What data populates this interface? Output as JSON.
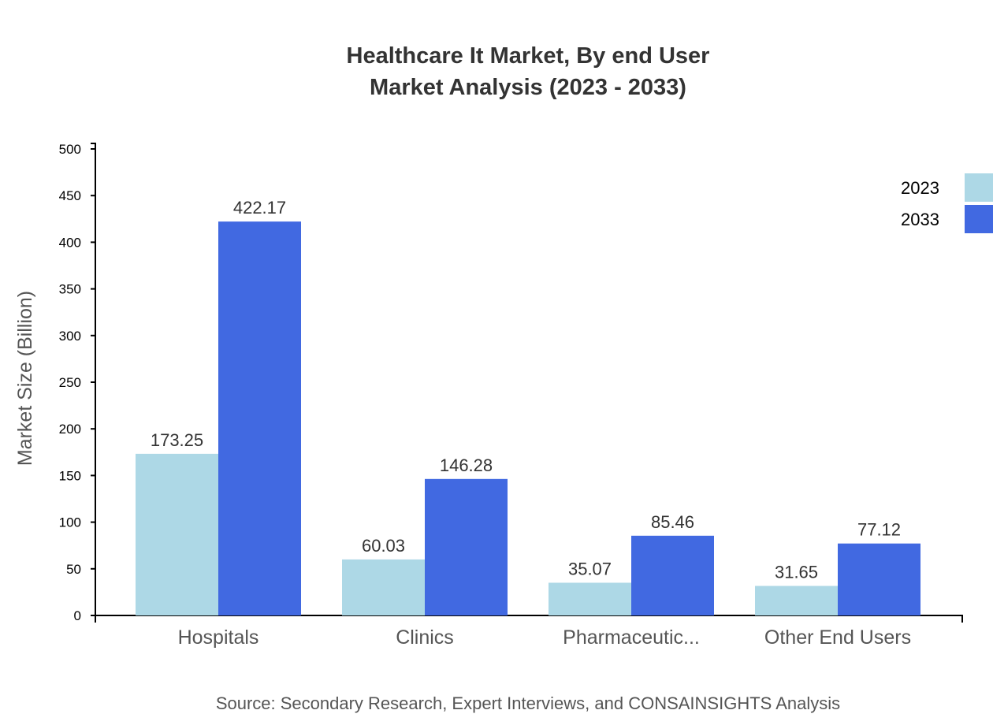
{
  "chart_data": {
    "type": "bar",
    "title": "Healthcare It Market, By end User",
    "subtitle": "Market Analysis (2023 - 2033)",
    "ylabel": "Market Size (Billion)",
    "xlabel": "",
    "ylim": [
      0,
      500
    ],
    "yticks": [
      0,
      50,
      100,
      150,
      200,
      250,
      300,
      350,
      400,
      450,
      500
    ],
    "categories": [
      "Hospitals",
      "Clinics",
      "Pharmaceutic...",
      "Other End Users"
    ],
    "series": [
      {
        "name": "2023",
        "color": "#add8e6",
        "values": [
          173.25,
          60.03,
          35.07,
          31.65
        ]
      },
      {
        "name": "2033",
        "color": "#4169e1",
        "values": [
          422.17,
          146.28,
          85.46,
          77.12
        ]
      }
    ],
    "grid": false,
    "legend_position": "top-right",
    "source": "Source: Secondary Research, Expert Interviews, and CONSAINSIGHTS Analysis"
  }
}
